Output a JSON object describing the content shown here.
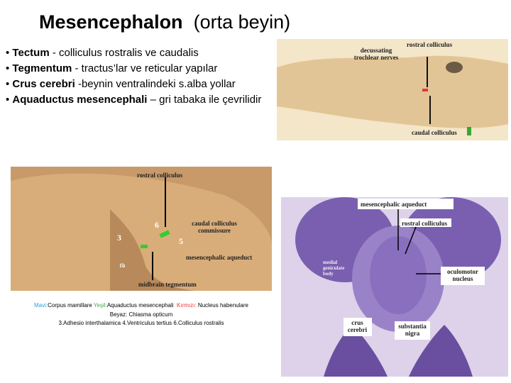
{
  "header": {
    "title": "Mesencephalon",
    "subtitle": "(orta beyin)"
  },
  "bullets": [
    {
      "term": "Tectum",
      "text": " - colliculus rostralis ve caudalis"
    },
    {
      "term": "Tegmentum",
      "text": " - tractus’lar ve reticular yapılar"
    },
    {
      "term": "Crus cerebri",
      "text": " -beynin ventralindeki s.alba yollar"
    },
    {
      "term": "Aquaductus mesencephali",
      "text": " – gri tabaka ile çevrilidir"
    }
  ],
  "figure1": {
    "labels": [
      "decussating trochlear nerves",
      "rostral colliculus",
      "caudal colliculus"
    ]
  },
  "figure2": {
    "labels": [
      "rostral colliculus",
      "caudal colliculus commissure",
      "mesencephalic aqueduct",
      "midbrain tegmentum",
      "3",
      "6",
      "5",
      "1b"
    ]
  },
  "caption": {
    "line1": [
      "Mavi:",
      "Corpus mamillare",
      "Yeşil:",
      "Aquaductus mesencephali",
      "Kırmızı:",
      "Nucleus habenulare"
    ],
    "line2": [
      "Beyaz:",
      "Chiasma opticum"
    ],
    "line3": "3.Adhesio interthalamica 4.Ventriculus tertius 6.Colliculus rostralis"
  },
  "figure3": {
    "labels": [
      "mesencephalic aqueduct",
      "rostral colliculus",
      "medial geniculate body",
      "oculomotor nucleus",
      "crus cerebri",
      "substantia nigra"
    ]
  }
}
